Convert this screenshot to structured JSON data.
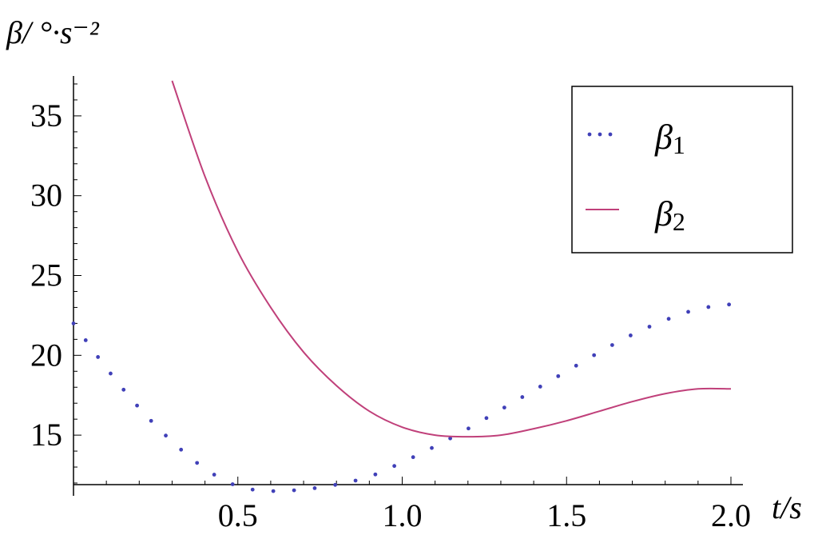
{
  "chart_data": {
    "type": "line",
    "title": "",
    "xlabel": "t/s",
    "ylabel": "β/ °·s⁻²",
    "xlim": [
      0,
      2.0
    ],
    "ylim": [
      11.9,
      37.5
    ],
    "axis_origin": {
      "x": 0,
      "y": 11.9
    },
    "x_ticks": [
      0.5,
      1.0,
      1.5,
      2.0
    ],
    "x_tick_labels": [
      "0.5",
      "1.0",
      "1.5",
      "2.0"
    ],
    "y_ticks": [
      15,
      20,
      25,
      30,
      35
    ],
    "y_tick_labels": [
      "15",
      "20",
      "25",
      "30",
      "35"
    ],
    "grid": false,
    "legend_position": "top-right",
    "series": [
      {
        "name": "β1",
        "name_base": "β",
        "name_sub": "1",
        "style": "dotted",
        "color": "#4040b8",
        "x": [
          0,
          0.1,
          0.2,
          0.3,
          0.4,
          0.5,
          0.6,
          0.7,
          0.8,
          0.9,
          1.0,
          1.1,
          1.2,
          1.3,
          1.4,
          1.5,
          1.6,
          1.7,
          1.8,
          1.9,
          2.0
        ],
        "y": [
          22.0,
          19.2,
          16.7,
          14.6,
          12.9,
          11.8,
          11.5,
          11.6,
          11.9,
          12.4,
          13.3,
          14.3,
          15.4,
          16.6,
          17.8,
          19.0,
          20.2,
          21.3,
          22.2,
          22.9,
          23.2
        ]
      },
      {
        "name": "β2",
        "name_base": "β",
        "name_sub": "2",
        "style": "solid",
        "color": "#c0407a",
        "x": [
          0.3,
          0.4,
          0.5,
          0.6,
          0.7,
          0.8,
          0.9,
          1.0,
          1.1,
          1.2,
          1.3,
          1.4,
          1.5,
          1.6,
          1.7,
          1.8,
          1.9,
          2.0
        ],
        "y": [
          37.2,
          31.2,
          26.5,
          23.0,
          20.2,
          18.1,
          16.5,
          15.5,
          15.0,
          14.9,
          15.0,
          15.4,
          15.9,
          16.5,
          17.1,
          17.6,
          17.9,
          17.9
        ]
      }
    ]
  }
}
